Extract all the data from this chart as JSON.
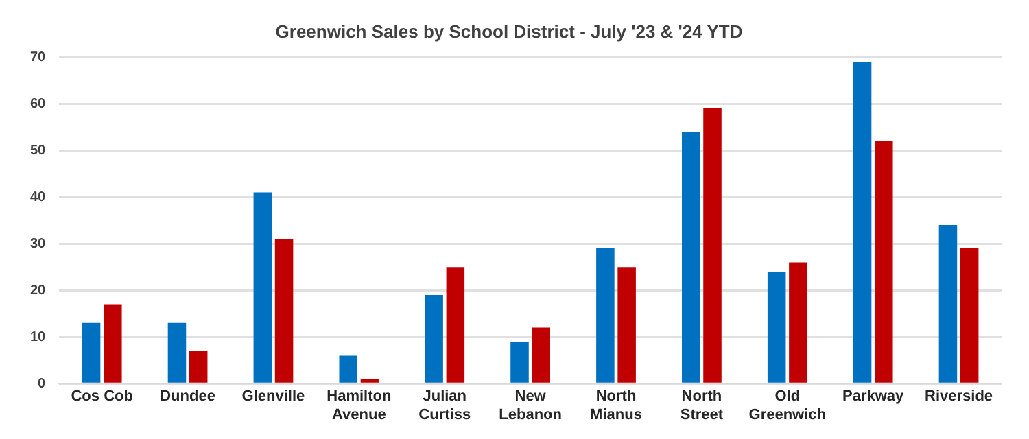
{
  "chart_data": {
    "type": "bar",
    "title": "Greenwich Sales by School District - July '23 & '24 YTD",
    "categories": [
      "Cos Cob",
      "Dundee",
      "Glenville",
      "Hamilton Avenue",
      "Julian Curtiss",
      "New Lebanon",
      "North Mianus",
      "North Street",
      "Old Greenwich",
      "Parkway",
      "Riverside"
    ],
    "series": [
      {
        "color": "#0070c0",
        "values": [
          13,
          13,
          41,
          6,
          19,
          9,
          29,
          54,
          24,
          69,
          34
        ]
      },
      {
        "color": "#c00000",
        "values": [
          17,
          7,
          31,
          1,
          25,
          12,
          25,
          59,
          26,
          52,
          29
        ]
      }
    ],
    "ylim": [
      0,
      70
    ],
    "yticks": [
      0,
      10,
      20,
      30,
      40,
      50,
      60,
      70
    ],
    "grid": "y",
    "legend": false
  }
}
